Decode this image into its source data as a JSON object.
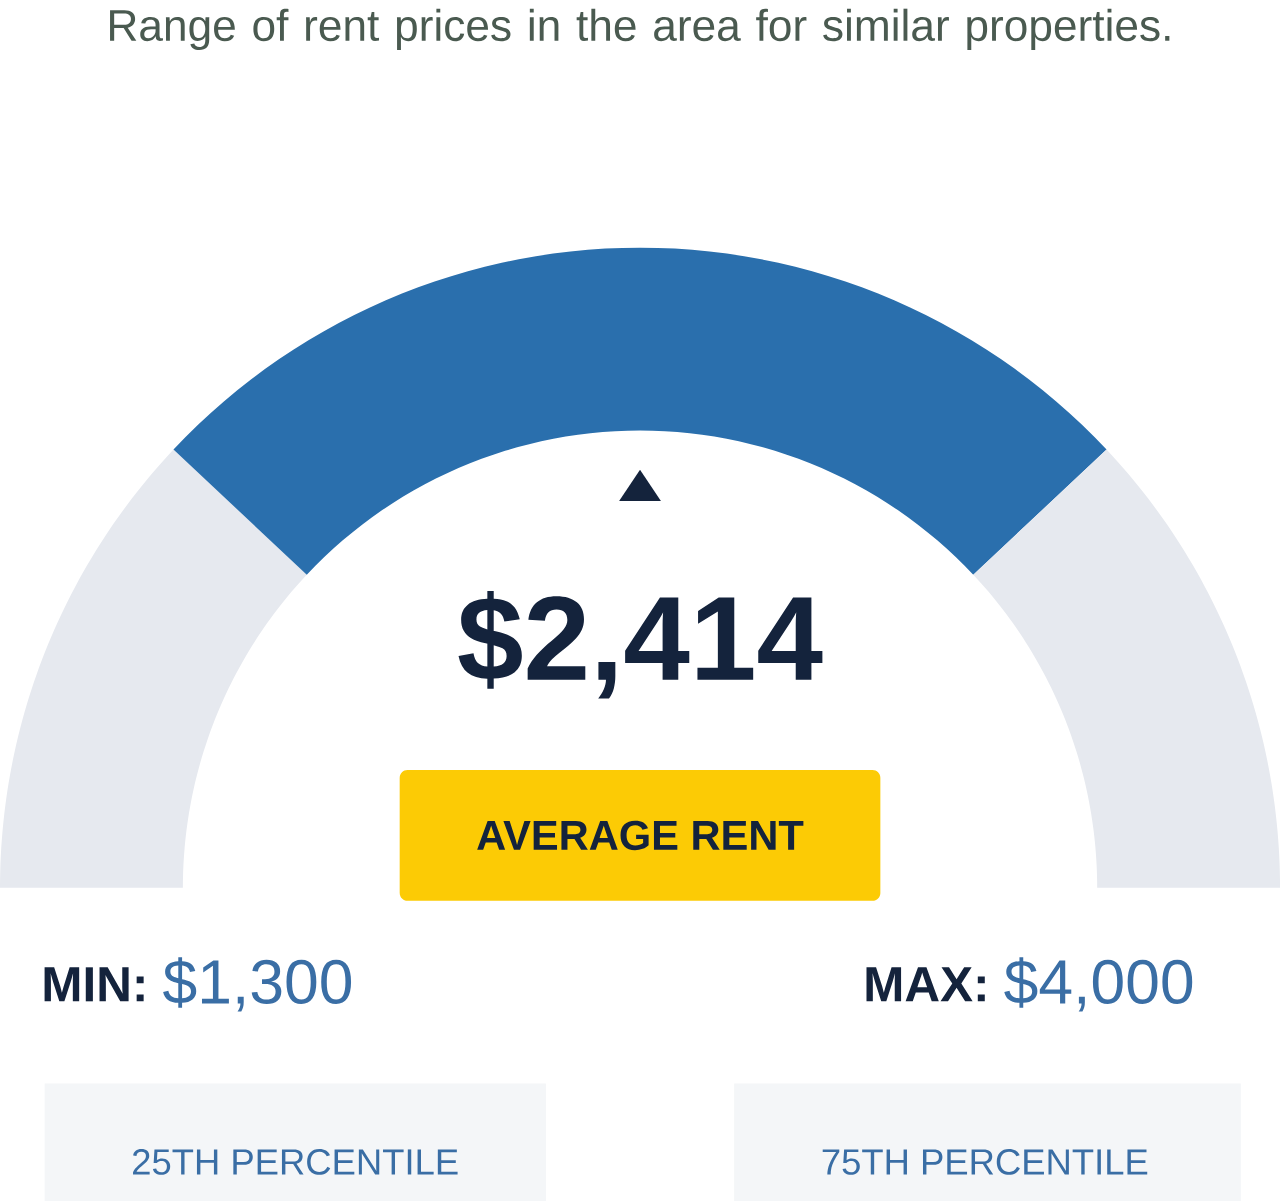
{
  "chart_data": {
    "type": "donut",
    "title": "Range of rent prices in the area for similar properties.",
    "categories": [
      null,
      null,
      null
    ],
    "values": [
      24,
      52,
      24
    ],
    "colors": [
      "#e6e9ef",
      "#2a6fad",
      "#e6e9ef"
    ],
    "annotations": [
      "$2,414",
      "AVERAGE RENT",
      "MIN:",
      "$1,300",
      "MAX:",
      "$4,000",
      "25TH PERCENTILE",
      "75TH PERCENTILE"
    ]
  }
}
